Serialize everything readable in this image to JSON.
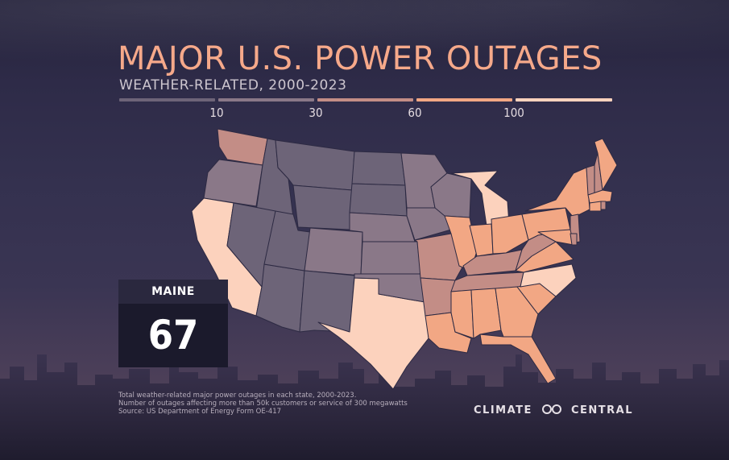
{
  "title": "MAJOR U.S. POWER OUTAGES",
  "subtitle": "WEATHER-RELATED, 2000-2023",
  "legend": {
    "ticks": [
      "10",
      "30",
      "60",
      "100"
    ],
    "colors": [
      "#6d6478",
      "#8a7888",
      "#c38d86",
      "#f2a784",
      "#fcd2bd"
    ]
  },
  "callout": {
    "state": "MAINE",
    "value": "67"
  },
  "notes": [
    "Total weather-related major power outages in each state, 2000-2023.",
    "Number of outages affecting more than 50k customers or service of 300 megawatts",
    "Source: US Department of Energy Form OE-417"
  ],
  "logo": {
    "left": "CLIMATE",
    "right": "CENTRAL"
  },
  "map_regions": [
    {
      "name": "washington",
      "cls": "c3"
    },
    {
      "name": "oregon",
      "cls": "c2"
    },
    {
      "name": "california",
      "cls": "c5"
    },
    {
      "name": "idaho",
      "cls": "c1"
    },
    {
      "name": "nevada",
      "cls": "c1"
    },
    {
      "name": "arizona",
      "cls": "c1"
    },
    {
      "name": "utah",
      "cls": "c1"
    },
    {
      "name": "montana",
      "cls": "c1"
    },
    {
      "name": "wyoming",
      "cls": "c1"
    },
    {
      "name": "colorado",
      "cls": "c2"
    },
    {
      "name": "new-mexico",
      "cls": "c1"
    },
    {
      "name": "texas",
      "cls": "c5"
    },
    {
      "name": "north-dakota",
      "cls": "c1"
    },
    {
      "name": "south-dakota",
      "cls": "c1"
    },
    {
      "name": "nebraska",
      "cls": "c2"
    },
    {
      "name": "kansas",
      "cls": "c2"
    },
    {
      "name": "oklahoma",
      "cls": "c2"
    },
    {
      "name": "minnesota",
      "cls": "c2"
    },
    {
      "name": "iowa",
      "cls": "c2"
    },
    {
      "name": "missouri",
      "cls": "c3"
    },
    {
      "name": "arkansas",
      "cls": "c3"
    },
    {
      "name": "louisiana",
      "cls": "c4"
    },
    {
      "name": "wisconsin",
      "cls": "c2"
    },
    {
      "name": "michigan",
      "cls": "c5"
    },
    {
      "name": "illinois",
      "cls": "c4"
    },
    {
      "name": "indiana",
      "cls": "c4"
    },
    {
      "name": "ohio",
      "cls": "c4"
    },
    {
      "name": "kentucky",
      "cls": "c3"
    },
    {
      "name": "tennessee",
      "cls": "c3"
    },
    {
      "name": "mississippi",
      "cls": "c4"
    },
    {
      "name": "alabama",
      "cls": "c4"
    },
    {
      "name": "georgia",
      "cls": "c4"
    },
    {
      "name": "florida",
      "cls": "c4"
    },
    {
      "name": "south-carolina",
      "cls": "c4"
    },
    {
      "name": "north-carolina",
      "cls": "c5"
    },
    {
      "name": "virginia",
      "cls": "c4"
    },
    {
      "name": "west-virginia",
      "cls": "c3"
    },
    {
      "name": "pennsylvania",
      "cls": "c4"
    },
    {
      "name": "new-york",
      "cls": "c4"
    },
    {
      "name": "new-jersey",
      "cls": "c3"
    },
    {
      "name": "maryland",
      "cls": "c4"
    },
    {
      "name": "delaware",
      "cls": "c3"
    },
    {
      "name": "vermont",
      "cls": "c3"
    },
    {
      "name": "new-hampshire",
      "cls": "c3"
    },
    {
      "name": "massachusetts",
      "cls": "c4"
    },
    {
      "name": "connecticut",
      "cls": "c4"
    },
    {
      "name": "rhode-island",
      "cls": "c3"
    },
    {
      "name": "maine",
      "cls": "c4"
    }
  ]
}
